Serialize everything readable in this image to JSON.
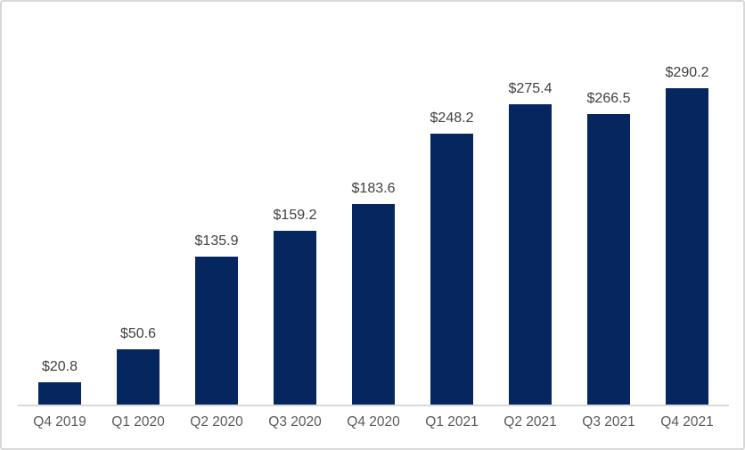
{
  "chart_data": {
    "type": "bar",
    "title": "",
    "xlabel": "",
    "ylabel": "",
    "categories": [
      "Q4 2019",
      "Q1 2020",
      "Q2 2020",
      "Q3 2020",
      "Q4 2020",
      "Q1 2021",
      "Q2 2021",
      "Q3 2021",
      "Q4 2021"
    ],
    "values": [
      20.8,
      50.6,
      135.9,
      159.2,
      183.6,
      248.2,
      275.4,
      266.5,
      290.2
    ],
    "data_labels": [
      "$20.8",
      "$50.6",
      "$135.9",
      "$159.2",
      "$183.6",
      "$248.2",
      "$275.4",
      "$266.5",
      "$290.2"
    ],
    "ylim": [
      0,
      369
    ],
    "grid": false,
    "legend": "none",
    "y_axis_visible": false,
    "bar_color": "#05265f",
    "data_label_color": "#404040",
    "axis_label_color": "#595959",
    "axis_line_color": "#d9d9d9",
    "card_border_color": "#d8d8d8",
    "background_color": "#ffffff"
  }
}
